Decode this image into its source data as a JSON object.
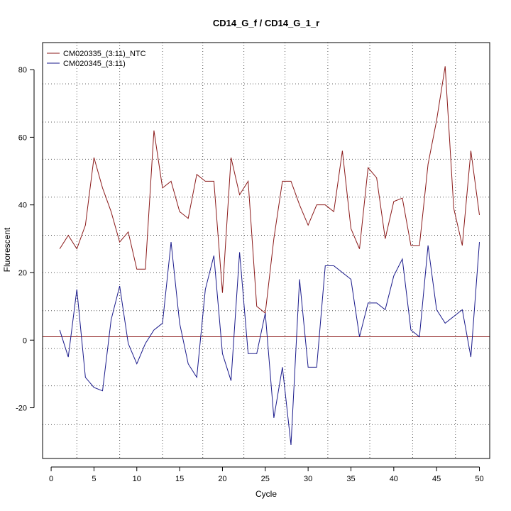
{
  "chart_data": {
    "type": "line",
    "title": "CD14_G_f / CD14_G_1_r",
    "xlabel": "Cycle",
    "ylabel": "Fluorescent",
    "xlim": [
      -1,
      51.2
    ],
    "ylim": [
      -35,
      88
    ],
    "xticks": [
      0,
      5,
      10,
      15,
      20,
      25,
      30,
      35,
      40,
      45,
      50
    ],
    "yticks": [
      -20,
      0,
      20,
      40,
      60,
      80
    ],
    "grid": "dotted",
    "vertical_gridlines": [
      3,
      8,
      13,
      17.7,
      22.5,
      27.3,
      32.3,
      37.2,
      42.2,
      47.2
    ],
    "horizontal_gridlines": [
      -25,
      -13.5,
      -2.5,
      8.7,
      20,
      31,
      42.3,
      53.5,
      64.5,
      75.8
    ],
    "threshold": {
      "y": 1,
      "color": "#8b1a1a"
    },
    "legend_position": "top-left",
    "x": [
      1,
      2,
      3,
      4,
      5,
      6,
      7,
      8,
      9,
      10,
      11,
      12,
      13,
      14,
      15,
      16,
      17,
      18,
      19,
      20,
      21,
      22,
      23,
      24,
      25,
      26,
      27,
      28,
      29,
      30,
      31,
      32,
      33,
      34,
      35,
      36,
      37,
      38,
      39,
      40,
      41,
      42,
      43,
      44,
      45,
      46,
      47,
      48,
      49,
      50
    ],
    "series": [
      {
        "name": "CM020335_(3:11)_NTC",
        "color": "#8b1a1a",
        "values": [
          27,
          31,
          27,
          34,
          54,
          45,
          38,
          29,
          32,
          21,
          21,
          62,
          45,
          47,
          38,
          36,
          49,
          47,
          47,
          14,
          54,
          43,
          47,
          10,
          8,
          30,
          47,
          47,
          40,
          34,
          40,
          40,
          38,
          56,
          33,
          27,
          51,
          48,
          30,
          41,
          42,
          28,
          28,
          52,
          65,
          81,
          39,
          28,
          56,
          37
        ]
      },
      {
        "name": "CM020345_(3:11)",
        "color": "#1a1a8b",
        "values": [
          3,
          -5,
          15,
          -11,
          -14,
          -15,
          6,
          16,
          -1,
          -7,
          -1,
          3,
          5,
          29,
          5,
          -7,
          -11,
          15,
          25,
          -4,
          -12,
          26,
          -4,
          -4,
          8,
          -23,
          -8,
          -31,
          18,
          -8,
          -8,
          22,
          22,
          20,
          18,
          1,
          11,
          11,
          9,
          19,
          24,
          3,
          1,
          28,
          9,
          5,
          7,
          9,
          -5,
          29
        ]
      }
    ]
  }
}
